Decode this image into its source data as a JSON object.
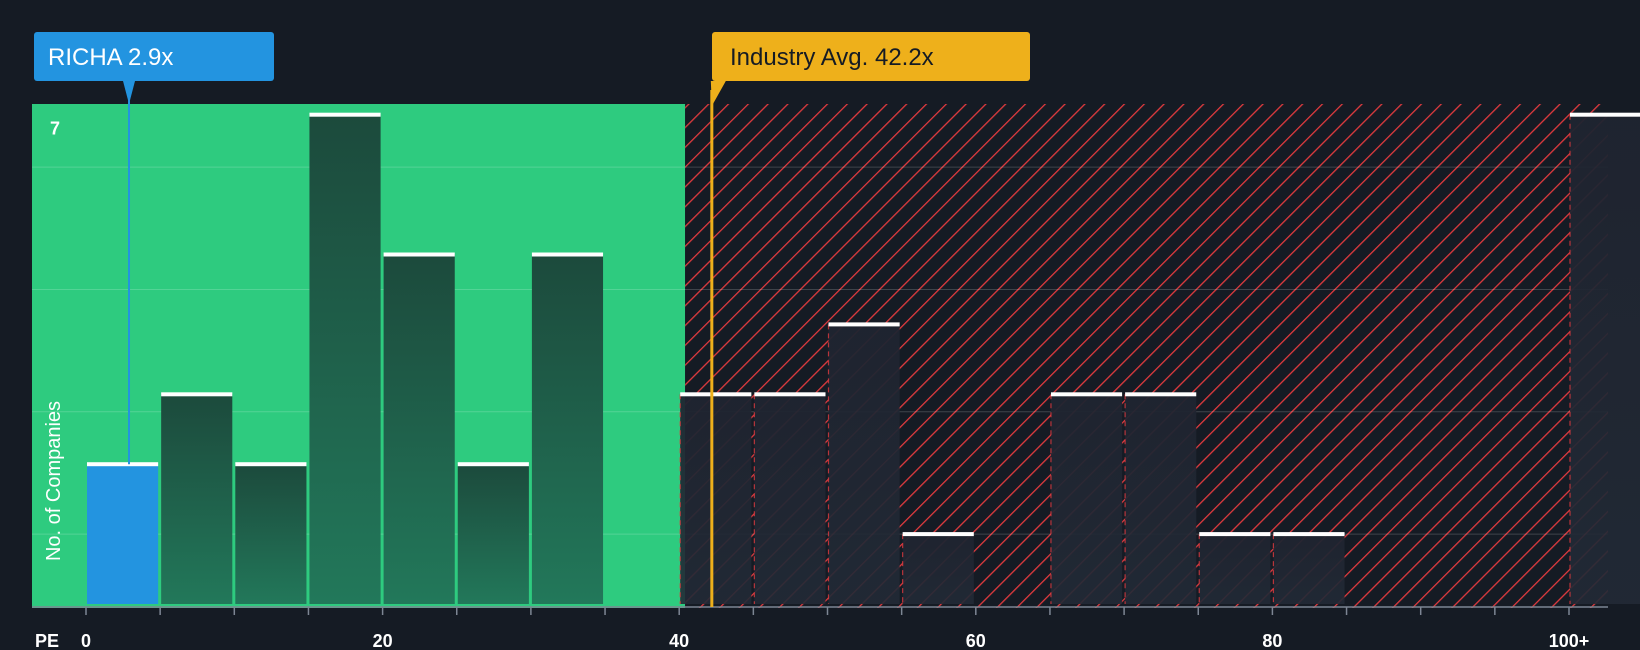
{
  "chart_data": {
    "type": "bar",
    "xlabel": "PE",
    "ylabel": "No. of Companies",
    "x_ticks": [
      {
        "value": 0,
        "label": "0"
      },
      {
        "value": 20,
        "label": "20"
      },
      {
        "value": 40,
        "label": "40"
      },
      {
        "value": 60,
        "label": "60"
      },
      {
        "value": 80,
        "label": "80"
      },
      {
        "value": 100,
        "label": "100+"
      }
    ],
    "y_tick_labels": [
      {
        "value": 7,
        "label": "7"
      }
    ],
    "ylim": [
      0,
      7
    ],
    "bin_width": 5,
    "bins": [
      {
        "start": 0,
        "count": 2,
        "highlight": true
      },
      {
        "start": 5,
        "count": 3
      },
      {
        "start": 10,
        "count": 2
      },
      {
        "start": 15,
        "count": 7
      },
      {
        "start": 20,
        "count": 5
      },
      {
        "start": 25,
        "count": 2
      },
      {
        "start": 30,
        "count": 5
      },
      {
        "start": 40,
        "count": 3
      },
      {
        "start": 45,
        "count": 3
      },
      {
        "start": 50,
        "count": 4
      },
      {
        "start": 55,
        "count": 1
      },
      {
        "start": 65,
        "count": 3
      },
      {
        "start": 70,
        "count": 3
      },
      {
        "start": 75,
        "count": 1
      },
      {
        "start": 80,
        "count": 1
      },
      {
        "start": 100,
        "count": 7
      }
    ],
    "fair_zone_max": 40.4,
    "company": {
      "name": "RICHA",
      "value": 2.9,
      "label": "RICHA 2.9x"
    },
    "industry_avg": {
      "value": 42.2,
      "label": "Industry Avg. 42.2x"
    },
    "colors": {
      "background": "#151b24",
      "fair_zone": "#2ecb7f",
      "bar_dark": "#1c4a3c",
      "bar_mid": "#22785a",
      "company_bar": "#2394e0",
      "company_callout": "#2394e0",
      "industry_callout": "#eeb01b",
      "overvalued_hatch": "#e03a3e",
      "overvalued_bar": "#1f2633"
    }
  }
}
